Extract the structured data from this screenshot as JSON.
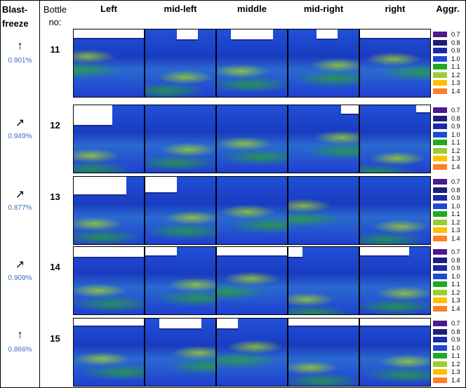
{
  "header": {
    "blast_freeze": "Blast-\nfreeze",
    "bottle": "Bottle\nno:",
    "positions": [
      "Left",
      "mid-left",
      "middle",
      "mid-right",
      "right"
    ],
    "aggr": "Aggr."
  },
  "legend": {
    "labels": [
      "0.7",
      "0.8",
      "0.9",
      "1.0",
      "1.1",
      "1.2",
      "1.3",
      "1.4"
    ],
    "colors": [
      "#4b1a8c",
      "#1e1e7a",
      "#1a2aa8",
      "#1e4bd2",
      "#22a822",
      "#9acd32",
      "#ffc000",
      "#ff7f27"
    ]
  },
  "rows": [
    {
      "arrow": "↑",
      "percent": "0.901%",
      "bottle": "11"
    },
    {
      "arrow": "↗",
      "percent": "0.949%",
      "bottle": "12"
    },
    {
      "arrow": "↗",
      "percent": "0.877%",
      "bottle": "13"
    },
    {
      "arrow": "↗",
      "percent": "0.909%",
      "bottle": "14"
    },
    {
      "arrow": "↑",
      "percent": "0.866%",
      "bottle": "15"
    }
  ]
}
